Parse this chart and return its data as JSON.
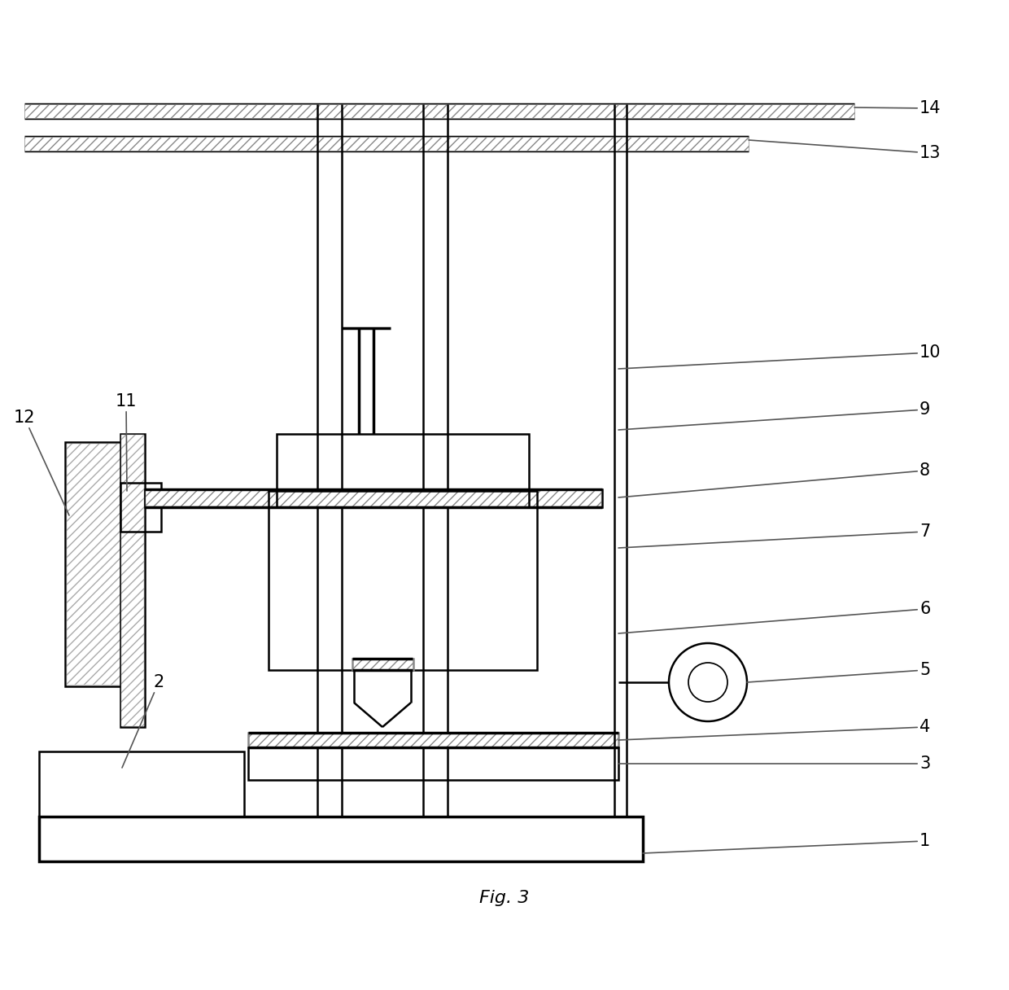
{
  "title": "Fig. 3",
  "fig_width": 12.4,
  "fig_height": 12.16,
  "bg_color": "#ffffff",
  "line_color": "#000000",
  "lw": 1.8,
  "tlw": 2.5
}
